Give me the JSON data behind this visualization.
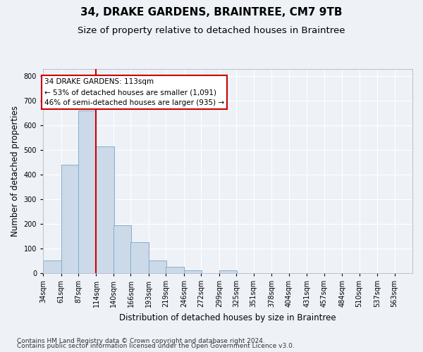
{
  "title": "34, DRAKE GARDENS, BRAINTREE, CM7 9TB",
  "subtitle": "Size of property relative to detached houses in Braintree",
  "xlabel": "Distribution of detached houses by size in Braintree",
  "ylabel": "Number of detached properties",
  "bin_labels": [
    "34sqm",
    "61sqm",
    "87sqm",
    "114sqm",
    "140sqm",
    "166sqm",
    "193sqm",
    "219sqm",
    "246sqm",
    "272sqm",
    "299sqm",
    "325sqm",
    "351sqm",
    "378sqm",
    "404sqm",
    "431sqm",
    "457sqm",
    "484sqm",
    "510sqm",
    "537sqm",
    "563sqm"
  ],
  "bar_heights": [
    50,
    440,
    660,
    515,
    193,
    125,
    50,
    25,
    10,
    0,
    10,
    0,
    0,
    0,
    0,
    0,
    0,
    0,
    0,
    0,
    0
  ],
  "bar_color": "#ccd9e8",
  "bar_edgecolor": "#85aecb",
  "vline_color": "#cc0000",
  "annotation_text": "34 DRAKE GARDENS: 113sqm\n← 53% of detached houses are smaller (1,091)\n46% of semi-detached houses are larger (935) →",
  "annotation_box_facecolor": "#ffffff",
  "annotation_box_edgecolor": "#cc0000",
  "ylim": [
    0,
    830
  ],
  "yticks": [
    0,
    100,
    200,
    300,
    400,
    500,
    600,
    700,
    800
  ],
  "footer_line1": "Contains HM Land Registry data © Crown copyright and database right 2024.",
  "footer_line2": "Contains public sector information licensed under the Open Government Licence v3.0.",
  "bg_color": "#eef2f7",
  "grid_color": "#ffffff",
  "title_fontsize": 11,
  "subtitle_fontsize": 9.5,
  "axis_label_fontsize": 8.5,
  "tick_fontsize": 7,
  "annot_fontsize": 7.5,
  "footer_fontsize": 6.5
}
